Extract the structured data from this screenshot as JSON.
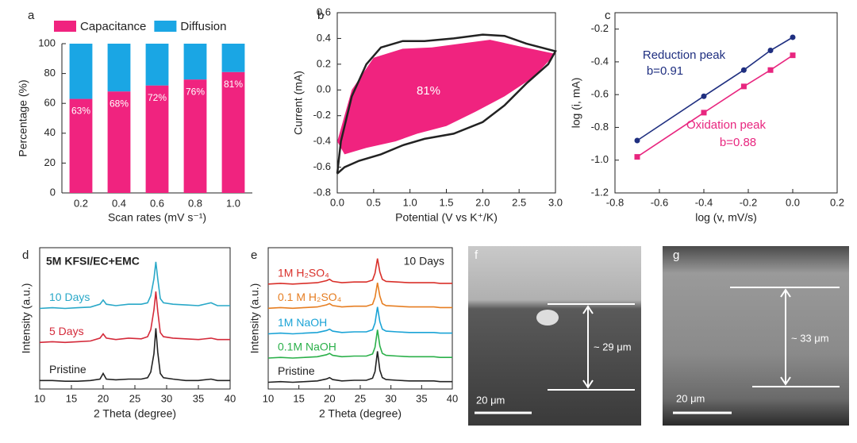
{
  "chart_data": [
    {
      "type": "bar",
      "panel": "a",
      "stacked": true,
      "legend": "top",
      "xlabel": "Scan rates (mV s⁻¹)",
      "ylabel": "Percentage (%)",
      "categories": [
        "0.2",
        "0.4",
        "0.6",
        "0.8",
        "1.0"
      ],
      "series": [
        {
          "name": "Capacitance",
          "color": "#f0237f",
          "values": [
            63,
            68,
            72,
            76,
            81
          ],
          "value_labels": [
            "63%",
            "68%",
            "72%",
            "76%",
            "81%"
          ]
        },
        {
          "name": "Diffusion",
          "color": "#1aa6e4",
          "values": [
            37,
            32,
            28,
            24,
            19
          ]
        }
      ],
      "ylim": [
        0,
        100
      ],
      "yticks": [
        0,
        20,
        40,
        60,
        80,
        100
      ]
    },
    {
      "type": "line",
      "panel": "b",
      "xlabel": "Potential (V vs K⁺/K)",
      "ylabel": "Current (mA)",
      "annotations": [
        "81%"
      ],
      "series": [
        {
          "color": "#f0237f",
          "fill": true,
          "x": [
            0,
            0.2,
            0.5,
            0.9,
            1.3,
            1.7,
            2.1,
            2.5,
            3.0,
            2.7,
            2.3,
            1.9,
            1.5,
            1.1,
            0.8,
            0.4,
            0.1,
            0
          ],
          "values": [
            -0.4,
            0.0,
            0.25,
            0.32,
            0.33,
            0.36,
            0.39,
            0.34,
            0.28,
            0.1,
            -0.05,
            -0.17,
            -0.28,
            -0.34,
            -0.4,
            -0.45,
            -0.5,
            -0.4
          ]
        },
        {
          "color": "#222222",
          "x": [
            0,
            0.05,
            0.2,
            0.4,
            0.6,
            0.9,
            1.2,
            1.6,
            2.0,
            2.3,
            2.6,
            3.0,
            2.9,
            2.6,
            2.3,
            2.0,
            1.6,
            1.2,
            0.9,
            0.6,
            0.3,
            0.1,
            0
          ],
          "values": [
            -0.65,
            -0.4,
            -0.05,
            0.2,
            0.33,
            0.38,
            0.38,
            0.4,
            0.43,
            0.42,
            0.36,
            0.3,
            0.2,
            0.05,
            -0.12,
            -0.25,
            -0.34,
            -0.38,
            -0.43,
            -0.5,
            -0.55,
            -0.6,
            -0.65
          ]
        }
      ],
      "xlim": [
        0,
        3
      ],
      "xticks": [
        {
          "value": 0,
          "label": "0.0"
        },
        0.5,
        {
          "value": 1,
          "label": "1.0"
        },
        1.5,
        {
          "value": 2,
          "label": "2.0"
        },
        2.5,
        {
          "value": 3,
          "label": "3.0"
        }
      ],
      "ylim": [
        -0.8,
        0.6
      ],
      "yticks": [
        -0.8,
        -0.6,
        -0.4,
        -0.2,
        {
          "value": 0,
          "label": "0.0"
        },
        0.2,
        0.4,
        0.6
      ]
    },
    {
      "type": "line",
      "panel": "c",
      "markers": true,
      "xlabel": "log (v, mV/s)",
      "ylabel": "log (i, mA)",
      "annotations": [
        "Reduction peak",
        "b=0.91",
        "Oxidation peak",
        "b=0.88"
      ],
      "x": [
        -0.7,
        -0.4,
        -0.22,
        -0.1,
        0
      ],
      "series": [
        {
          "color": "#1f2f80",
          "values": [
            -0.88,
            -0.61,
            -0.45,
            -0.33,
            -0.25
          ]
        },
        {
          "color": "#e8267f",
          "values": [
            -0.98,
            -0.71,
            -0.55,
            -0.45,
            -0.36
          ]
        }
      ],
      "xlim": [
        -0.8,
        0.2
      ],
      "xticks": [
        -0.8,
        -0.6,
        -0.4,
        -0.2,
        {
          "value": 0,
          "label": "0.0"
        },
        0.2
      ],
      "ylim": [
        -1.2,
        -0.1
      ],
      "yticks": [
        -1.2,
        {
          "value": -1,
          "label": "-1.0"
        },
        -0.8,
        -0.6,
        -0.4,
        -0.2
      ]
    },
    {
      "type": "line",
      "panel": "d",
      "subtitle": "5M KFSI/EC+EMC",
      "xlabel": "2 Theta (degree)",
      "ylabel": "Intensity (a.u.)",
      "x": [
        10,
        12,
        14,
        16,
        18,
        19.5,
        20,
        20.5,
        22,
        24,
        26,
        27,
        27.5,
        28,
        28.3,
        28.6,
        29,
        29.5,
        31,
        33,
        35,
        37,
        38,
        40
      ],
      "series": [
        {
          "name": "Pristine",
          "color": "#222222",
          "values": [
            0.6,
            0.6,
            0.55,
            0.55,
            0.6,
            0.7,
            1.1,
            0.7,
            0.65,
            0.7,
            0.7,
            0.8,
            1.2,
            2.5,
            4.3,
            2.6,
            1.1,
            0.8,
            0.7,
            0.6,
            0.6,
            0.7,
            0.6,
            0.6
          ]
        },
        {
          "name": "5 Days",
          "color": "#d42a3a",
          "values": [
            3.3,
            3.35,
            3.3,
            3.35,
            3.4,
            3.6,
            3.9,
            3.6,
            3.5,
            3.6,
            3.55,
            3.7,
            4.2,
            5.6,
            6.9,
            5.5,
            4.0,
            3.7,
            3.6,
            3.55,
            3.5,
            3.6,
            3.5,
            3.5
          ]
        },
        {
          "name": "10 Days",
          "color": "#29a8c8",
          "values": [
            5.7,
            5.75,
            5.7,
            5.75,
            5.8,
            6.0,
            6.3,
            6.0,
            5.9,
            6.0,
            6.0,
            6.1,
            6.6,
            7.8,
            9.0,
            7.8,
            6.4,
            6.1,
            6.0,
            5.95,
            5.9,
            6.1,
            5.9,
            5.9
          ]
        }
      ],
      "xlim": [
        10,
        40
      ],
      "xticks": [
        10,
        15,
        20,
        25,
        30,
        35,
        40
      ],
      "ylim": [
        0,
        10
      ]
    },
    {
      "type": "line",
      "panel": "e",
      "subtitle": "10 Days",
      "xlabel": "2 Theta (degree)",
      "ylabel": "Intensity (a.u.)",
      "x": [
        10,
        12,
        14,
        16,
        18,
        19.5,
        20,
        20.5,
        22,
        24,
        26,
        27,
        27.4,
        27.8,
        28.2,
        28.6,
        29.2,
        31,
        33,
        35,
        37,
        38,
        40
      ],
      "series": [
        {
          "name": "Pristine",
          "color": "#222222",
          "values": [
            0.5,
            0.55,
            0.5,
            0.55,
            0.6,
            0.75,
            0.85,
            0.7,
            0.6,
            0.65,
            0.65,
            0.8,
            1.3,
            2.8,
            1.4,
            0.85,
            0.7,
            0.65,
            0.6,
            0.6,
            0.6,
            0.55,
            0.55
          ]
        },
        {
          "name": "0.1M NaOH",
          "color": "#2bb04a",
          "values": [
            2.3,
            2.35,
            2.3,
            2.35,
            2.4,
            2.55,
            2.65,
            2.5,
            2.4,
            2.45,
            2.45,
            2.6,
            3.1,
            4.4,
            3.2,
            2.65,
            2.5,
            2.45,
            2.4,
            2.4,
            2.4,
            2.35,
            2.35
          ]
        },
        {
          "name": "1M NaOH",
          "color": "#1aa3d6",
          "values": [
            4.1,
            4.15,
            4.1,
            4.15,
            4.2,
            4.35,
            4.45,
            4.3,
            4.2,
            4.25,
            4.25,
            4.4,
            4.9,
            6.1,
            5.0,
            4.45,
            4.3,
            4.25,
            4.2,
            4.2,
            4.2,
            4.15,
            4.15
          ]
        },
        {
          "name": "0.1 M H₂SO₄",
          "color": "#e67e22",
          "values": [
            6.0,
            6.05,
            6.0,
            6.05,
            6.1,
            6.25,
            6.35,
            6.2,
            6.1,
            6.15,
            6.15,
            6.3,
            6.8,
            7.9,
            6.9,
            6.35,
            6.2,
            6.15,
            6.1,
            6.1,
            6.1,
            6.05,
            6.05
          ]
        },
        {
          "name": "1M H₂SO₄",
          "color": "#d9302a",
          "values": [
            7.8,
            7.85,
            7.8,
            7.85,
            7.9,
            8.05,
            8.15,
            8.0,
            7.9,
            7.95,
            7.95,
            8.1,
            8.6,
            9.7,
            8.7,
            8.15,
            8.0,
            7.95,
            7.9,
            7.9,
            7.9,
            7.85,
            7.85
          ]
        }
      ],
      "xlim": [
        10,
        40
      ],
      "xticks": [
        10,
        15,
        20,
        25,
        30,
        35,
        40
      ],
      "ylim": [
        0,
        10.5
      ]
    }
  ],
  "images": [
    {
      "panel": "f",
      "thickness": "~ 29 μm",
      "scale": "20 μm"
    },
    {
      "panel": "g",
      "thickness": "~ 33 μm",
      "scale": "20 μm"
    }
  ]
}
